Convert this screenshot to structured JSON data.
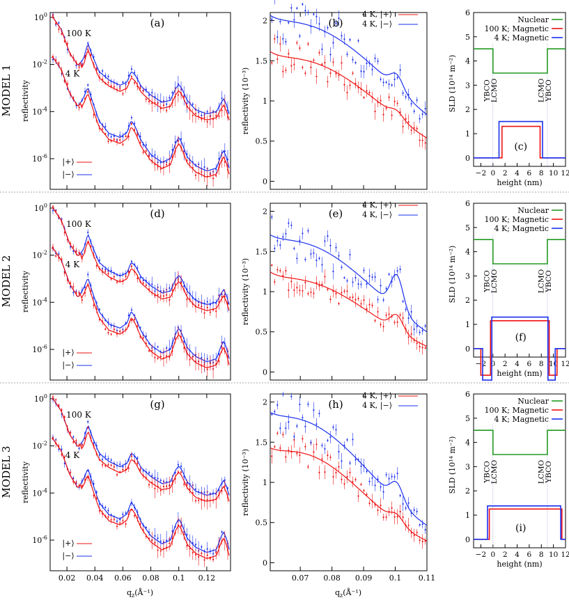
{
  "models": [
    {
      "name": "MODEL 1",
      "panels": [
        "(a)",
        "(b)",
        "(c)"
      ]
    },
    {
      "name": "MODEL 2",
      "panels": [
        "(d)",
        "(e)",
        "(f)"
      ]
    },
    {
      "name": "MODEL 3",
      "panels": [
        "(g)",
        "(h)",
        "(i)"
      ]
    }
  ],
  "labels": {
    "refl_ylabel": "reflectivity",
    "zoom_ylabel": "reflectivity (10⁻³)",
    "sld_ylabel": "SLD (10¹⁴ m⁻²)",
    "sld_xlabel": "height (nm)",
    "qz_label": "q₂(Å⁻¹)",
    "temp_100K": "100 K",
    "temp_4K": "4 K",
    "legend_plus": "|+⟩",
    "legend_minus": "|−⟩",
    "zoom_legend_plus": "4 K, |+⟩",
    "zoom_legend_minus": "4 K, |−⟩",
    "sld_nuclear": "Nuclear",
    "sld_100K": "100 K; Magnetic",
    "sld_4K": "4 K; Magnetic",
    "ybco": "YBCO",
    "lcmo": "LCMO"
  },
  "colors": {
    "plus": "#ee1111",
    "minus": "#1a2fee",
    "nuclear": "#229922"
  },
  "chart_data": [
    {
      "type": "line",
      "panels": [
        "(a)",
        "(d)",
        "(g)"
      ],
      "scale": "log-y",
      "xlim": [
        0.008,
        0.137
      ],
      "ylim": [
        5e-08,
        1.6
      ],
      "xticks": [
        0.02,
        0.04,
        0.06,
        0.08,
        0.1,
        0.12
      ],
      "yticks": [
        "10^0",
        "10^-2",
        "10^-4",
        "10^-6"
      ],
      "series_100K_minus": {
        "x": [
          0.01,
          0.016,
          0.022,
          0.028,
          0.032,
          0.035,
          0.038,
          0.043,
          0.05,
          0.058,
          0.063,
          0.066,
          0.069,
          0.073,
          0.08,
          0.088,
          0.094,
          0.098,
          0.1,
          0.102,
          0.106,
          0.112,
          0.12,
          0.127,
          0.13,
          0.132,
          0.134,
          0.136
        ],
        "y": [
          1.0,
          0.3,
          0.03,
          0.009,
          0.018,
          0.08,
          0.025,
          0.005,
          0.0022,
          0.0013,
          0.0018,
          0.005,
          0.0035,
          0.0012,
          0.0005,
          0.00025,
          0.0003,
          0.001,
          0.0014,
          0.001,
          0.0003,
          0.00012,
          8e-05,
          0.0001,
          0.00022,
          0.00035,
          0.0002,
          8e-05
        ]
      },
      "series_4K_minus": {
        "x": [
          0.01,
          0.016,
          0.022,
          0.028,
          0.032,
          0.035,
          0.038,
          0.043,
          0.05,
          0.058,
          0.063,
          0.066,
          0.069,
          0.073,
          0.08,
          0.088,
          0.094,
          0.098,
          0.1,
          0.102,
          0.106,
          0.112,
          0.12,
          0.127,
          0.13,
          0.132,
          0.134,
          0.136
        ],
        "y": [
          0.02,
          0.006,
          0.0006,
          0.00016,
          0.0004,
          0.0011,
          0.0003,
          4e-05,
          1.2e-05,
          8e-06,
          1.3e-05,
          4.2e-05,
          2.2e-05,
          6e-06,
          1.5e-06,
          7e-07,
          1e-06,
          5e-06,
          8e-06,
          5e-06,
          1.2e-06,
          5e-07,
          3e-07,
          4e-07,
          1.3e-06,
          2.2e-06,
          1.2e-06,
          4e-07
        ]
      },
      "ratio_plus_to_minus": 0.55
    },
    {
      "type": "line",
      "panels": [
        "(b)",
        "(e)",
        "(h)"
      ],
      "xlim": [
        0.0605,
        0.11
      ],
      "ylim": [
        -0.1,
        2.1
      ],
      "xticks": [
        0.07,
        0.08,
        0.09,
        0.1,
        0.11
      ],
      "yticks": [
        0,
        0.5,
        1,
        1.5,
        2
      ],
      "peaks": [
        {
          "panel": "(b)",
          "plus": [
            0.0678,
            1.47,
            0.09
          ],
          "minus": [
            0.0675,
            1.92,
            0.1
          ]
        },
        {
          "panel": "(e)",
          "plus": [
            0.0678,
            1.1,
            0.08
          ],
          "minus": [
            0.0676,
            1.57,
            0.085
          ]
        },
        {
          "panel": "(h)",
          "plus": [
            0.0684,
            1.32,
            0.07
          ],
          "minus": [
            0.0672,
            1.74,
            0.08
          ]
        }
      ]
    },
    {
      "type": "line",
      "panels": [
        "(c)",
        "(f)",
        "(i)"
      ],
      "xlim": [
        -3.2,
        12
      ],
      "ylim": [
        -0.35,
        6
      ],
      "xticks": [
        -2,
        0,
        2,
        4,
        6,
        8,
        10,
        12
      ],
      "yticks": [
        0,
        1,
        2,
        3,
        4,
        5,
        6
      ],
      "profiles": [
        {
          "panel": "(c)",
          "nuclear": [
            [
              -3.2,
              4.5
            ],
            [
              0,
              4.5
            ],
            [
              0,
              3.5
            ],
            [
              9,
              3.5
            ],
            [
              9,
              4.5
            ],
            [
              12,
              4.5
            ]
          ],
          "mag100K": [
            [
              -3.2,
              0
            ],
            [
              1.5,
              0
            ],
            [
              1.5,
              1.3
            ],
            [
              7.8,
              1.3
            ],
            [
              7.8,
              0
            ],
            [
              12,
              0
            ]
          ],
          "mag4K": [
            [
              -3.2,
              0
            ],
            [
              1.0,
              0
            ],
            [
              1.0,
              1.5
            ],
            [
              8.2,
              1.5
            ],
            [
              8.2,
              0
            ],
            [
              12,
              0
            ]
          ]
        },
        {
          "panel": "(f)",
          "nuclear": [
            [
              -3.2,
              4.5
            ],
            [
              0,
              4.5
            ],
            [
              0,
              3.5
            ],
            [
              9,
              3.5
            ],
            [
              9,
              4.5
            ],
            [
              12,
              4.5
            ]
          ],
          "mag100K": [
            [
              -3.2,
              0
            ],
            [
              -2.0,
              0
            ],
            [
              -2.0,
              -1.1
            ],
            [
              -0.4,
              -1.1
            ],
            [
              -0.4,
              1.15
            ],
            [
              9.3,
              1.15
            ],
            [
              9.3,
              -1.1
            ],
            [
              10.6,
              -1.1
            ],
            [
              10.6,
              0
            ],
            [
              12,
              0
            ]
          ],
          "mag4K": [
            [
              -3.2,
              0
            ],
            [
              -1.7,
              0
            ],
            [
              -1.7,
              -1.3
            ],
            [
              -0.2,
              -1.3
            ],
            [
              -0.2,
              1.3
            ],
            [
              9.1,
              1.3
            ],
            [
              9.1,
              -1.3
            ],
            [
              10.3,
              -1.3
            ],
            [
              10.3,
              0
            ],
            [
              12,
              0
            ]
          ]
        },
        {
          "panel": "(i)",
          "nuclear": [
            [
              -3.2,
              4.5
            ],
            [
              0,
              4.5
            ],
            [
              0,
              3.5
            ],
            [
              9,
              3.5
            ],
            [
              9,
              4.5
            ],
            [
              12,
              4.5
            ]
          ],
          "mag100K": [
            [
              -3.2,
              0
            ],
            [
              -0.6,
              0
            ],
            [
              -0.6,
              1.25
            ],
            [
              11.4,
              1.25
            ],
            [
              11.4,
              0
            ],
            [
              12,
              0
            ]
          ],
          "mag4K": [
            [
              -3.2,
              0
            ],
            [
              -0.9,
              0
            ],
            [
              -0.9,
              1.38
            ],
            [
              11.2,
              1.38
            ],
            [
              11.2,
              0
            ],
            [
              12,
              0
            ]
          ]
        }
      ],
      "interfaces": [
        0,
        9
      ]
    }
  ]
}
